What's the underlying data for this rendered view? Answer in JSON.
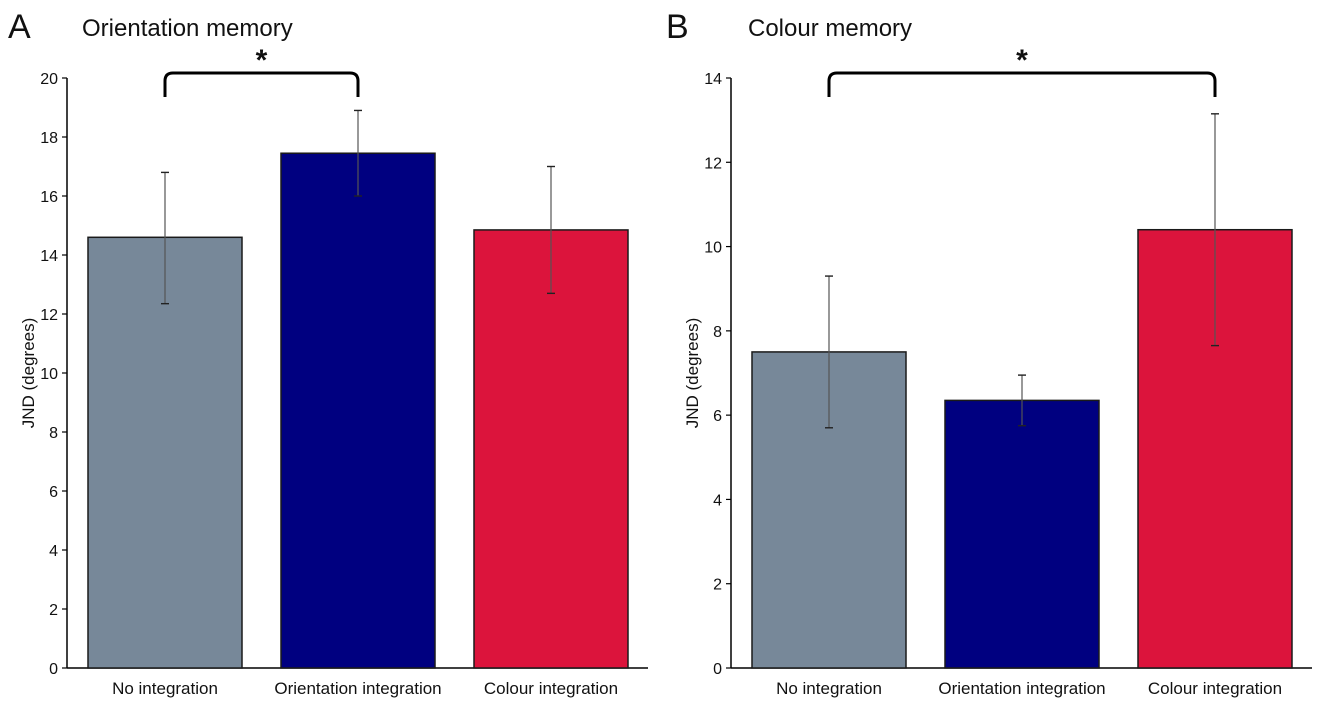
{
  "colors": {
    "no_integration": "#778899",
    "orientation_integration": "#000080",
    "colour_integration": "#DC143C"
  },
  "chart_data": [
    {
      "panel": "A",
      "type": "bar",
      "title": "Orientation memory",
      "xlabel": "",
      "ylabel": "JND (degrees)",
      "categories": [
        "No integration",
        "Orientation integration",
        "Colour integration"
      ],
      "values": [
        14.6,
        17.45,
        14.85
      ],
      "error_low": [
        12.35,
        16.0,
        12.7
      ],
      "error_high": [
        16.8,
        18.9,
        17.0
      ],
      "ylim": [
        0,
        20
      ],
      "yticks": [
        0,
        2,
        4,
        6,
        8,
        10,
        12,
        14,
        16,
        18,
        20
      ],
      "grid": false,
      "significance": {
        "from": 0,
        "to": 1,
        "label": "*"
      }
    },
    {
      "panel": "B",
      "type": "bar",
      "title": "Colour memory",
      "xlabel": "",
      "ylabel": "JND (degrees)",
      "categories": [
        "No integration",
        "Orientation integration",
        "Colour integration"
      ],
      "values": [
        7.5,
        6.35,
        10.4
      ],
      "error_low": [
        5.7,
        5.75,
        7.65
      ],
      "error_high": [
        9.3,
        6.95,
        13.15
      ],
      "ylim": [
        0,
        14
      ],
      "yticks": [
        0,
        2,
        4,
        6,
        8,
        10,
        12,
        14
      ],
      "grid": false,
      "significance": {
        "from": 0,
        "to": 2,
        "label": "*"
      }
    }
  ]
}
